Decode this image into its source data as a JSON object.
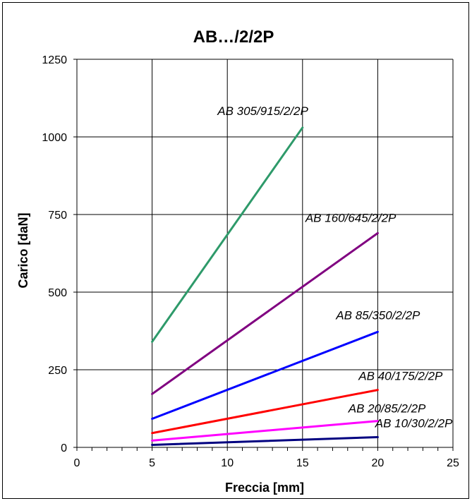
{
  "chart_data": {
    "type": "line",
    "title": "AB…/2/2P",
    "xlabel": "Freccia [mm]",
    "ylabel": "Carico [daN]",
    "xlim": [
      0,
      25
    ],
    "ylim": [
      0,
      1250
    ],
    "x_ticks": [
      "0",
      "5",
      "10",
      "15",
      "20",
      "25"
    ],
    "y_ticks": [
      "0",
      "250",
      "500",
      "750",
      "1000",
      "1250"
    ],
    "grid": true,
    "legend": "inline labels near line ends",
    "series": [
      {
        "name": "AB 305/915/2/2P",
        "color": "#2e9a6a",
        "x": [
          5,
          15
        ],
        "y": [
          340,
          1030
        ]
      },
      {
        "name": "AB 160/645/2/2P",
        "color": "#800080",
        "x": [
          5,
          20
        ],
        "y": [
          172,
          690
        ]
      },
      {
        "name": "AB 85/350/2/2P",
        "color": "#0000ff",
        "x": [
          5,
          20
        ],
        "y": [
          92,
          372
        ]
      },
      {
        "name": "AB 40/175/2/2P",
        "color": "#ff0000",
        "x": [
          5,
          20
        ],
        "y": [
          46,
          185
        ]
      },
      {
        "name": "AB 20/85/2/2P",
        "color": "#ff00ff",
        "x": [
          5,
          20
        ],
        "y": [
          22,
          85
        ]
      },
      {
        "name": "AB 10/30/2/2P",
        "color": "#000080",
        "x": [
          5,
          20
        ],
        "y": [
          8,
          33
        ]
      }
    ]
  }
}
